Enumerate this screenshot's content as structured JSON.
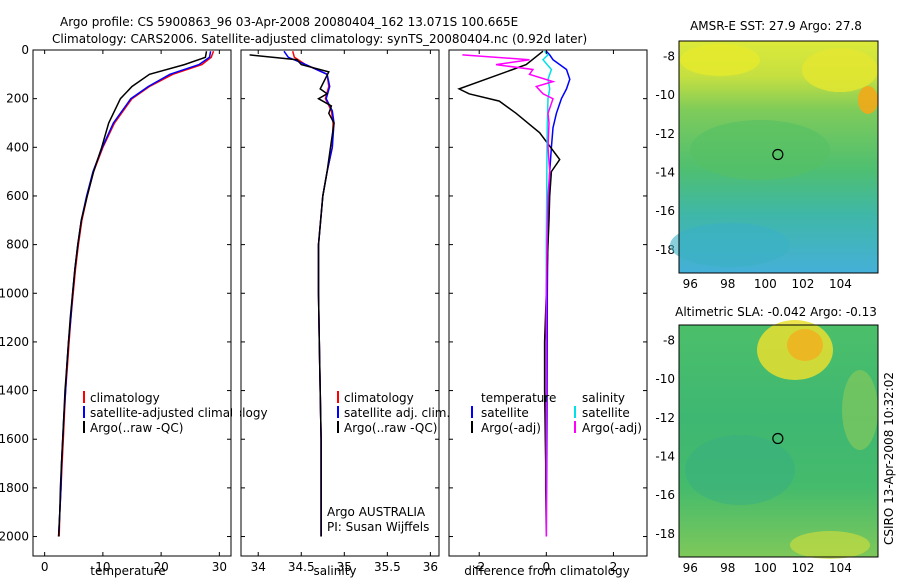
{
  "header": {
    "line1": "Argo profile: CS 5900863_96 03-Apr-2008 20080404_162 13.071S 100.665E",
    "line2": "Climatology: CARS2006. Satellite-adjusted climatology: synTS_20080404.nc (0.92d later)"
  },
  "side_label": "CSIRO 13-Apr-2008 10:32:02",
  "colors": {
    "climatology": "#ff0000",
    "satellite": "#0000ff",
    "argo": "#000000",
    "sal_sat": "#00e0e8",
    "sal_argo": "#ff00ff"
  },
  "chart_data": [
    {
      "type": "line",
      "id": "temperature",
      "xlabel": "temperature",
      "ylabel": "",
      "xlim": [
        -2,
        32
      ],
      "ylim": [
        2080,
        0
      ],
      "y_reversed": true,
      "xticks": [
        "0",
        "10",
        "20",
        "30"
      ],
      "yticks": [
        "0",
        "200",
        "400",
        "600",
        "800",
        "1000",
        "1200",
        "1400",
        "1600",
        "1800",
        "2000"
      ],
      "legend": {
        "position": "lower-right",
        "entries": [
          "climatology",
          "satellite-adjusted climatology",
          "Argo(..raw -QC)"
        ]
      },
      "series": [
        {
          "name": "climatology",
          "color": "#ff0000",
          "points": [
            [
              29,
              5
            ],
            [
              28.6,
              30
            ],
            [
              27,
              60
            ],
            [
              22,
              100
            ],
            [
              18,
              150
            ],
            [
              15,
              200
            ],
            [
              12,
              300
            ],
            [
              10,
              400
            ],
            [
              8.4,
              500
            ],
            [
              7.3,
              600
            ],
            [
              6.4,
              700
            ],
            [
              5.8,
              800
            ],
            [
              5.3,
              900
            ],
            [
              4.9,
              1000
            ],
            [
              4.5,
              1100
            ],
            [
              4.2,
              1200
            ],
            [
              3.9,
              1300
            ],
            [
              3.6,
              1400
            ],
            [
              3.4,
              1500
            ],
            [
              3.2,
              1600
            ],
            [
              3,
              1700
            ],
            [
              2.8,
              1800
            ],
            [
              2.6,
              1900
            ],
            [
              2.5,
              2000
            ]
          ]
        },
        {
          "name": "satellite-adjusted climatology",
          "color": "#0000ff",
          "points": [
            [
              28.5,
              5
            ],
            [
              28.3,
              30
            ],
            [
              26.5,
              60
            ],
            [
              21.5,
              100
            ],
            [
              17.8,
              150
            ],
            [
              14.8,
              200
            ],
            [
              11.8,
              300
            ],
            [
              9.9,
              400
            ],
            [
              8.3,
              500
            ],
            [
              7.2,
              600
            ],
            [
              6.3,
              700
            ],
            [
              5.7,
              800
            ],
            [
              5.2,
              900
            ],
            [
              4.8,
              1000
            ],
            [
              4.5,
              1100
            ],
            [
              4.1,
              1200
            ],
            [
              3.8,
              1300
            ],
            [
              3.6,
              1400
            ],
            [
              3.3,
              1500
            ],
            [
              3.1,
              1600
            ],
            [
              2.9,
              1700
            ],
            [
              2.8,
              1800
            ],
            [
              2.6,
              1900
            ],
            [
              2.4,
              2000
            ]
          ]
        },
        {
          "name": "Argo(..raw -QC)",
          "color": "#000000",
          "points": [
            [
              27.8,
              5
            ],
            [
              27.6,
              30
            ],
            [
              24,
              60
            ],
            [
              18,
              100
            ],
            [
              15,
              150
            ],
            [
              13,
              200
            ],
            [
              11,
              300
            ],
            [
              9.8,
              400
            ],
            [
              8.4,
              500
            ],
            [
              7.3,
              600
            ],
            [
              6.3,
              700
            ],
            [
              5.7,
              800
            ],
            [
              5.2,
              900
            ],
            [
              4.8,
              1000
            ],
            [
              4.4,
              1100
            ],
            [
              4.1,
              1200
            ],
            [
              3.8,
              1300
            ],
            [
              3.5,
              1400
            ],
            [
              3.3,
              1500
            ],
            [
              3.1,
              1600
            ],
            [
              2.9,
              1700
            ],
            [
              2.7,
              1800
            ],
            [
              2.6,
              1900
            ],
            [
              2.4,
              2000
            ]
          ]
        }
      ]
    },
    {
      "type": "line",
      "id": "salinity",
      "xlabel": "salinity",
      "ylabel": "",
      "xlim": [
        33.8,
        36.1
      ],
      "ylim": [
        2080,
        0
      ],
      "y_reversed": true,
      "xticks": [
        "34",
        "34.5",
        "35",
        "35.5",
        "36"
      ],
      "legend": {
        "position": "lower-right",
        "entries": [
          "climatology",
          "satellite adj. clim.",
          "Argo(..raw -QC)"
        ]
      },
      "annotation": [
        "Argo AUSTRALIA",
        "PI: Susan Wijffels"
      ],
      "series": [
        {
          "name": "climatology",
          "color": "#ff0000",
          "points": [
            [
              34.4,
              5
            ],
            [
              34.42,
              30
            ],
            [
              34.55,
              60
            ],
            [
              34.8,
              100
            ],
            [
              34.82,
              150
            ],
            [
              34.78,
              200
            ],
            [
              34.85,
              250
            ],
            [
              34.87,
              300
            ],
            [
              34.86,
              400
            ],
            [
              34.8,
              500
            ],
            [
              34.75,
              600
            ],
            [
              34.7,
              800
            ],
            [
              34.7,
              1000
            ],
            [
              34.71,
              1200
            ],
            [
              34.72,
              1400
            ],
            [
              34.73,
              1600
            ],
            [
              34.73,
              1800
            ],
            [
              34.73,
              2000
            ]
          ]
        },
        {
          "name": "satellite adj. clim.",
          "color": "#0000ff",
          "points": [
            [
              34.3,
              5
            ],
            [
              34.35,
              30
            ],
            [
              34.55,
              60
            ],
            [
              34.8,
              100
            ],
            [
              34.83,
              150
            ],
            [
              34.79,
              200
            ],
            [
              34.86,
              250
            ],
            [
              34.88,
              300
            ],
            [
              34.86,
              400
            ],
            [
              34.8,
              500
            ],
            [
              34.75,
              600
            ],
            [
              34.7,
              800
            ],
            [
              34.7,
              1000
            ],
            [
              34.71,
              1200
            ],
            [
              34.72,
              1400
            ],
            [
              34.73,
              1600
            ],
            [
              34.73,
              1800
            ],
            [
              34.73,
              2000
            ]
          ]
        },
        {
          "name": "Argo(..raw -QC)",
          "color": "#000000",
          "points": [
            [
              33.9,
              20
            ],
            [
              34.45,
              40
            ],
            [
              34.5,
              60
            ],
            [
              34.82,
              90
            ],
            [
              34.72,
              160
            ],
            [
              34.8,
              180
            ],
            [
              34.7,
              200
            ],
            [
              34.85,
              230
            ],
            [
              34.82,
              260
            ],
            [
              34.88,
              300
            ],
            [
              34.84,
              400
            ],
            [
              34.8,
              500
            ],
            [
              34.75,
              600
            ],
            [
              34.7,
              800
            ],
            [
              34.7,
              1000
            ],
            [
              34.71,
              1200
            ],
            [
              34.72,
              1400
            ],
            [
              34.73,
              1600
            ],
            [
              34.73,
              1800
            ],
            [
              34.73,
              2000
            ]
          ]
        }
      ]
    },
    {
      "type": "line",
      "id": "difference",
      "xlabel": "difference from climatology",
      "ylabel": "",
      "xlim": [
        -2.9,
        3.0
      ],
      "ylim": [
        2080,
        0
      ],
      "y_reversed": true,
      "xticks": [
        "-2",
        "0",
        "2"
      ],
      "legend": {
        "position": "lower-right",
        "groups": [
          {
            "title": "temperature",
            "entries": [
              "satellite",
              "Argo(-adj)"
            ]
          },
          {
            "title": "salinity",
            "entries": [
              "satellite",
              "Argo(-adj)"
            ]
          }
        ]
      },
      "series": [
        {
          "name": "temperature satellite",
          "color": "#0000ff",
          "points": [
            [
              0,
              5
            ],
            [
              0.1,
              20
            ],
            [
              0.2,
              40
            ],
            [
              0.6,
              80
            ],
            [
              0.7,
              120
            ],
            [
              0.6,
              160
            ],
            [
              0.45,
              200
            ],
            [
              0.3,
              260
            ],
            [
              0.2,
              320
            ],
            [
              0.15,
              400
            ],
            [
              0.1,
              500
            ],
            [
              0.05,
              700
            ],
            [
              0.03,
              1000
            ],
            [
              0.02,
              1500
            ],
            [
              0,
              2000
            ]
          ]
        },
        {
          "name": "temperature Argo(-adj)",
          "color": "#000000",
          "points": [
            [
              -0.1,
              5
            ],
            [
              -0.6,
              60
            ],
            [
              -1,
              80
            ],
            [
              -2.6,
              160
            ],
            [
              -2.3,
              180
            ],
            [
              -1.4,
              210
            ],
            [
              -0.9,
              260
            ],
            [
              -0.2,
              340
            ],
            [
              0.4,
              450
            ],
            [
              0.15,
              500
            ],
            [
              0.1,
              600
            ],
            [
              0.08,
              700
            ],
            [
              0.05,
              800
            ],
            [
              0,
              1000
            ],
            [
              -0.05,
              1200
            ],
            [
              -0.05,
              1300
            ],
            [
              -0.05,
              1400
            ],
            [
              -0.04,
              1500
            ],
            [
              -0.03,
              1600
            ],
            [
              -0.02,
              1700
            ],
            [
              -0.02,
              1800
            ],
            [
              -0.01,
              1900
            ],
            [
              0,
              2000
            ]
          ]
        },
        {
          "name": "salinity satellite",
          "color": "#00e0e8",
          "points": [
            [
              -0.05,
              5
            ],
            [
              0.05,
              20
            ],
            [
              -0.1,
              40
            ],
            [
              0.15,
              80
            ],
            [
              0.05,
              120
            ],
            [
              0.1,
              160
            ],
            [
              0.05,
              200
            ],
            [
              0.03,
              300
            ],
            [
              0.02,
              400
            ],
            [
              0.01,
              600
            ],
            [
              0,
              800
            ],
            [
              0,
              1000
            ],
            [
              0,
              1400
            ],
            [
              0,
              1800
            ],
            [
              0,
              2000
            ]
          ]
        },
        {
          "name": "salinity Argo(-adj)",
          "color": "#ff00ff",
          "points": [
            [
              -2.5,
              20
            ],
            [
              -0.5,
              40
            ],
            [
              -1.5,
              60
            ],
            [
              -0.4,
              80
            ],
            [
              -0.5,
              100
            ],
            [
              0.2,
              130
            ],
            [
              -0.3,
              150
            ],
            [
              -0.1,
              180
            ],
            [
              0.2,
              200
            ],
            [
              0.05,
              260
            ],
            [
              0.08,
              300
            ],
            [
              0.05,
              400
            ],
            [
              0.1,
              500
            ],
            [
              0.05,
              600
            ],
            [
              0.02,
              800
            ],
            [
              0,
              1000
            ],
            [
              0,
              1400
            ],
            [
              0,
              1800
            ],
            [
              0,
              2000
            ]
          ]
        }
      ]
    },
    {
      "type": "heatmap",
      "id": "sst-map",
      "title": "AMSR-E SST: 27.9 Argo: 27.8",
      "xlim": [
        95.4,
        106
      ],
      "ylim": [
        -19.2,
        -7.2
      ],
      "xticks": [
        "96",
        "98",
        "100",
        "102",
        "104"
      ],
      "yticks": [
        "-8",
        "-10",
        "-12",
        "-14",
        "-16",
        "-18"
      ],
      "marker": {
        "lon": 100.665,
        "lat": -13.071
      }
    },
    {
      "type": "heatmap",
      "id": "sla-map",
      "title": "Altimetric SLA: -0.042 Argo: -0.13",
      "xlim": [
        95.4,
        106
      ],
      "ylim": [
        -19.2,
        -7.2
      ],
      "xticks": [
        "96",
        "98",
        "100",
        "102",
        "104"
      ],
      "yticks": [
        "-8",
        "-10",
        "-12",
        "-14",
        "-16",
        "-18"
      ],
      "marker": {
        "lon": 100.665,
        "lat": -13.071
      }
    }
  ]
}
